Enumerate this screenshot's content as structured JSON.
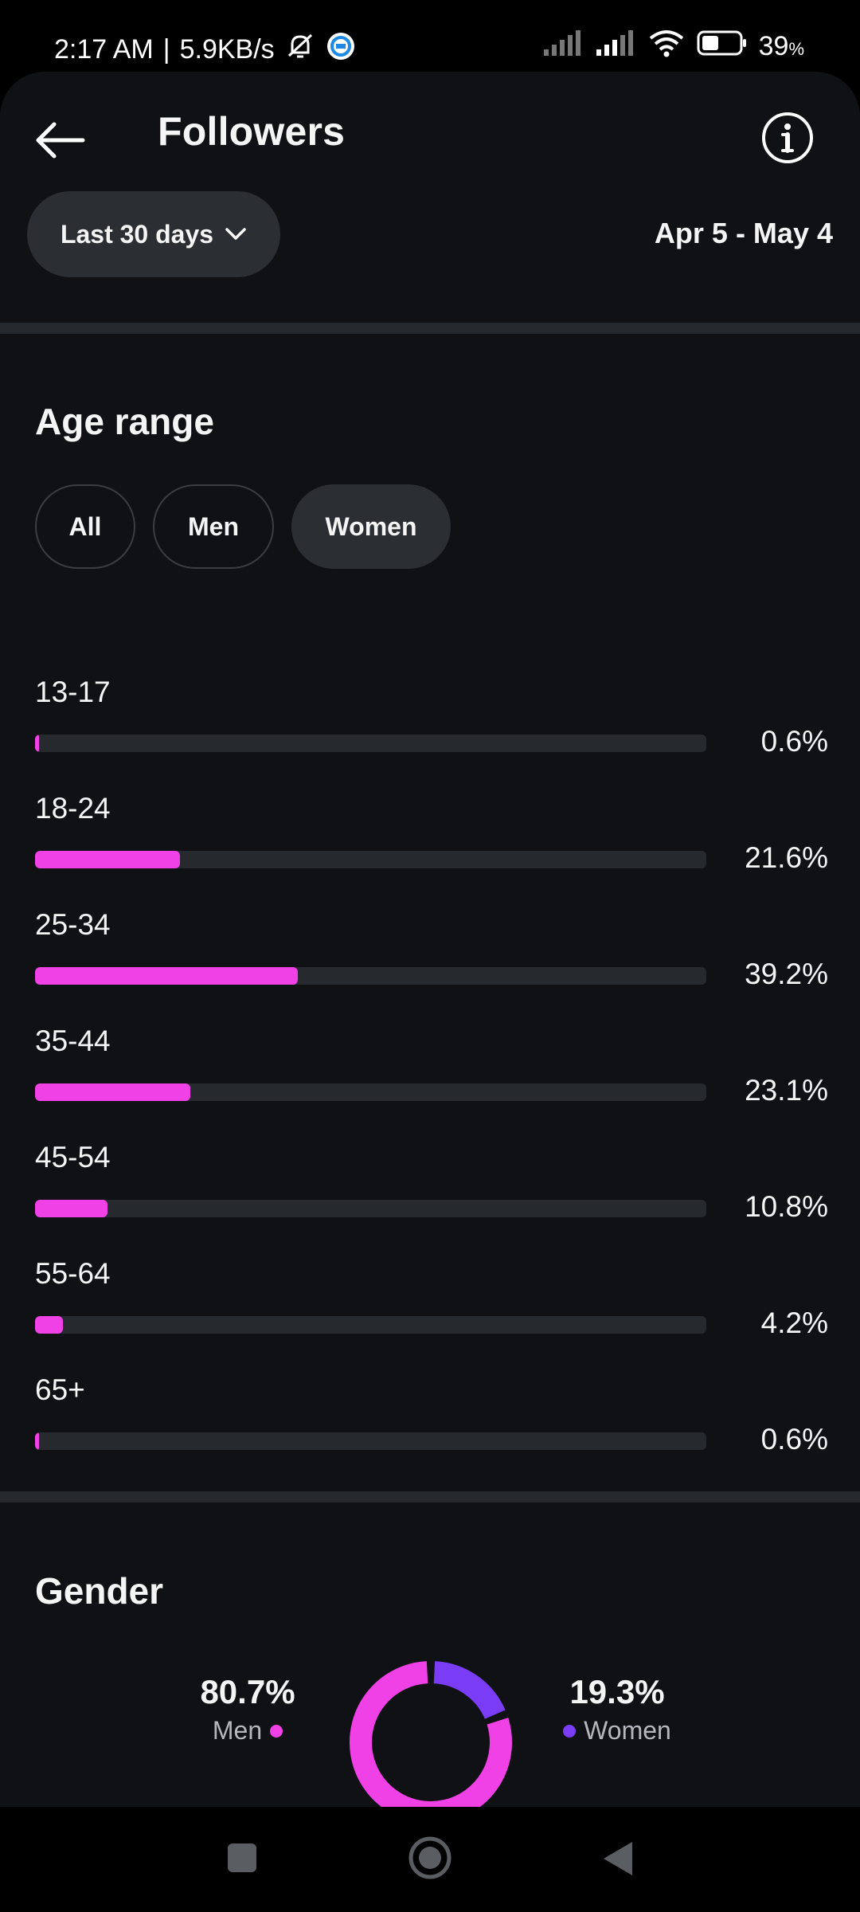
{
  "status_bar": {
    "time": "2:17 AM",
    "separator": "|",
    "net_speed": "5.9KB/s",
    "battery": "39",
    "battery_unit": "%",
    "icons": [
      "mute-bell-icon",
      "sync-app-icon",
      "signal-icon",
      "signal-icon",
      "wifi-icon",
      "battery-icon"
    ]
  },
  "header": {
    "title": "Followers",
    "back_icon": "arrow-left-icon",
    "info_icon": "info-icon"
  },
  "filter": {
    "range_label": "Last 30 days",
    "dropdown_icon": "chevron-down-icon",
    "date_range": "Apr 5 - May 4"
  },
  "age_range": {
    "title": "Age range",
    "tabs": [
      {
        "label": "All",
        "active": false
      },
      {
        "label": "Men",
        "active": false
      },
      {
        "label": "Women",
        "active": true
      }
    ],
    "accent_color": "#f041e6",
    "rows": [
      {
        "label": "13-17",
        "value": 0.6,
        "pct": "0.6%"
      },
      {
        "label": "18-24",
        "value": 21.6,
        "pct": "21.6%"
      },
      {
        "label": "25-34",
        "value": 39.2,
        "pct": "39.2%"
      },
      {
        "label": "35-44",
        "value": 23.1,
        "pct": "23.1%"
      },
      {
        "label": "45-54",
        "value": 10.8,
        "pct": "10.8%"
      },
      {
        "label": "55-64",
        "value": 4.2,
        "pct": "4.2%"
      },
      {
        "label": "65+",
        "value": 0.6,
        "pct": "0.6%"
      }
    ]
  },
  "gender": {
    "title": "Gender",
    "men": {
      "pct": "80.7%",
      "label": "Men",
      "value": 80.7,
      "color": "#f041e6"
    },
    "women": {
      "pct": "19.3%",
      "label": "Women",
      "value": 19.3,
      "color": "#7b3cf5"
    }
  },
  "nav_bar": {
    "icons": [
      "recents-square-icon",
      "home-circle-icon",
      "back-triangle-icon"
    ]
  }
}
